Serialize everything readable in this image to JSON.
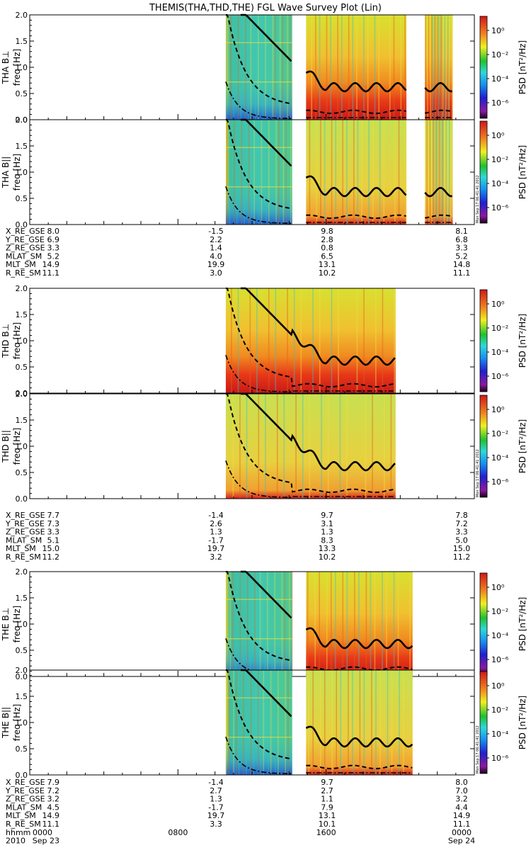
{
  "title": "THEMIS(THA,THD,THE) FGL Wave Survey Plot (Lin)",
  "colors": {
    "axis": "#000000",
    "trace": "#000000",
    "gap": "#ffffff",
    "colorbar": [
      "#1a001a",
      "#8a1aa0",
      "#2020d0",
      "#1890f0",
      "#30d8d8",
      "#20c030",
      "#f0f020",
      "#f08020",
      "#d01818"
    ]
  },
  "chart_data": {
    "type": "heatmap",
    "xrange": [
      "2010-09-23 00:00",
      "2010-09-24 00:00"
    ],
    "ylim": [
      0,
      2.0
    ],
    "yticks": [
      "0.0",
      "0.5",
      "1.0",
      "1.5",
      "2.0"
    ],
    "ylabel": "freq [Hz]",
    "colorbar": {
      "label": "PSD [nT²/Hz]",
      "ticks": [
        "10⁰",
        "10⁻²",
        "10⁻⁴",
        "10⁻⁶"
      ],
      "log": true
    },
    "stamp": "Mon Sep 17 06:41:41 2012",
    "probes": [
      {
        "panels": [
          {
            "label": "THA B⊥",
            "data_segments": [
              [
                "10:35",
                "14:10"
              ],
              [
                "14:55",
                "20:20"
              ],
              [
                "21:20",
                "22:50"
              ]
            ]
          },
          {
            "label": "THA B||",
            "data_segments": [
              [
                "10:35",
                "14:10"
              ],
              [
                "14:55",
                "20:20"
              ],
              [
                "21:20",
                "22:50"
              ]
            ]
          }
        ],
        "orbit": {
          "names": [
            "X_RE_GSE",
            "Y_RE_GSE",
            "Z_RE_GSE",
            "MLAT_SM",
            "MLT_SM",
            "R_RE_SM"
          ],
          "columns": [
            [
              "8.0",
              "6.9",
              "3.3",
              "5.2",
              "14.9",
              "11.1"
            ],
            [
              "-1.5",
              "2.2",
              "1.4",
              "4.0",
              "19.9",
              "3.0"
            ],
            [
              "9.8",
              "2.8",
              "0.8",
              "6.5",
              "13.1",
              "10.2"
            ],
            [
              "8.1",
              "6.8",
              "3.3",
              "5.2",
              "14.8",
              "11.1"
            ]
          ]
        }
      },
      {
        "panels": [
          {
            "label": "THD B⊥",
            "data_segments": [
              [
                "10:35",
                "19:45"
              ]
            ]
          },
          {
            "label": "THD B||",
            "data_segments": [
              [
                "10:35",
                "19:45"
              ]
            ]
          }
        ],
        "orbit": {
          "names": [
            "X_RE_GSE",
            "Y_RE_GSE",
            "Z_RE_GSE",
            "MLAT_SM",
            "MLT_SM",
            "R_RE_SM"
          ],
          "columns": [
            [
              "7.7",
              "7.3",
              "3.3",
              "5.1",
              "15.0",
              "11.2"
            ],
            [
              "-1.4",
              "2.6",
              "1.3",
              "-1.7",
              "19.7",
              "3.2"
            ],
            [
              "9.7",
              "3.1",
              "1.3",
              "8.3",
              "13.3",
              "10.2"
            ],
            [
              "7.8",
              "7.2",
              "3.3",
              "5.0",
              "15.0",
              "11.2"
            ]
          ]
        }
      },
      {
        "panels": [
          {
            "label": "THE B⊥",
            "data_segments": [
              [
                "10:35",
                "14:10"
              ],
              [
                "14:55",
                "20:40"
              ]
            ]
          },
          {
            "label": "THE B||",
            "data_segments": [
              [
                "10:35",
                "14:10"
              ],
              [
                "14:55",
                "20:40"
              ]
            ]
          }
        ],
        "orbit": {
          "names": [
            "X_RE_GSE",
            "Y_RE_GSE",
            "Z_RE_GSE",
            "MLAT_SM",
            "MLT_SM",
            "R_RE_SM"
          ],
          "columns": [
            [
              "7.9",
              "7.2",
              "3.2",
              "4.5",
              "14.9",
              "11.1"
            ],
            [
              "-1.4",
              "2.7",
              "1.3",
              "-1.7",
              "19.7",
              "3.3"
            ],
            [
              "9.7",
              "2.7",
              "1.1",
              "7.9",
              "13.1",
              "10.1"
            ],
            [
              "8.0",
              "7.0",
              "3.2",
              "4.4",
              "14.9",
              "11.1"
            ]
          ]
        }
      }
    ],
    "time_axis": {
      "row1_name": "hhmm",
      "row1": [
        "0000",
        "0800",
        "1600",
        "0000"
      ],
      "row2_name": "2010",
      "row2": [
        "Sep 23",
        "",
        "",
        "Sep 24"
      ]
    }
  }
}
